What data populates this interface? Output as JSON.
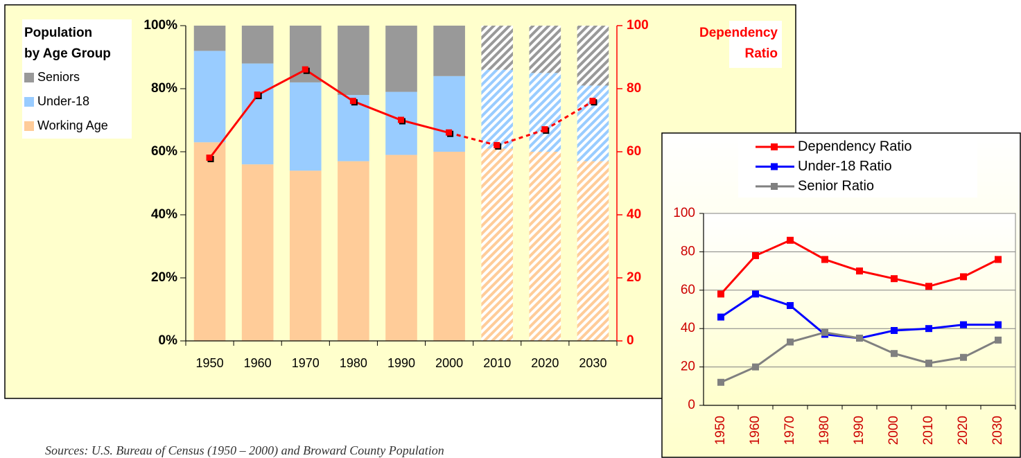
{
  "chart_data": [
    {
      "type": "bar",
      "stacked": true,
      "legend_title": [
        "Population",
        "by Age Group"
      ],
      "y2_title": [
        "Dependency",
        "Ratio"
      ],
      "categories": [
        "1950",
        "1960",
        "1970",
        "1980",
        "1990",
        "2000",
        "2010",
        "2020",
        "2030"
      ],
      "hatched": [
        false,
        false,
        false,
        false,
        false,
        false,
        true,
        true,
        true
      ],
      "series": [
        {
          "name": "Working Age",
          "color": "#ffcc99",
          "values": [
            63,
            56,
            54,
            57,
            59,
            60,
            61,
            60,
            57
          ]
        },
        {
          "name": "Under-18",
          "color": "#99ccff",
          "values": [
            29,
            32,
            28,
            21,
            20,
            24,
            25,
            25,
            24
          ]
        },
        {
          "name": "Seniors",
          "color": "#999999",
          "values": [
            8,
            12,
            18,
            22,
            21,
            16,
            14,
            15,
            19
          ]
        },
        {
          "type": "line",
          "axis": "y2",
          "color": "#ff0000",
          "values": [
            58,
            78,
            86,
            76,
            70,
            66,
            62,
            67,
            76
          ]
        }
      ],
      "ylim": [
        0,
        100
      ],
      "yticks": [
        {
          "value": 0,
          "label": "0%"
        },
        {
          "value": 20,
          "label": "20%"
        },
        {
          "value": 40,
          "label": "40%"
        },
        {
          "value": 60,
          "label": "60%"
        },
        {
          "value": 80,
          "label": "80%"
        },
        {
          "value": 100,
          "label": "100%"
        }
      ],
      "y2lim": [
        0,
        100
      ],
      "y2ticks": [
        0,
        20,
        40,
        60,
        80,
        100
      ],
      "legend": "upper left"
    },
    {
      "type": "line",
      "categories": [
        "1950",
        "1960",
        "1970",
        "1980",
        "1990",
        "2000",
        "2010",
        "2020",
        "2030"
      ],
      "series": [
        {
          "name": "Dependency Ratio",
          "color": "#ff0000",
          "values": [
            58,
            78,
            86,
            76,
            70,
            66,
            62,
            67,
            76
          ]
        },
        {
          "name": "Under-18 Ratio",
          "color": "#0000ff",
          "values": [
            46,
            58,
            52,
            37,
            35,
            39,
            40,
            42,
            42
          ]
        },
        {
          "name": "Senior Ratio",
          "color": "#808080",
          "values": [
            12,
            20,
            33,
            38,
            35,
            27,
            22,
            25,
            34
          ]
        }
      ],
      "ylim": [
        0,
        100
      ],
      "yticks": [
        0,
        20,
        40,
        60,
        80,
        100
      ],
      "grid": true,
      "legend": "top"
    }
  ],
  "source": "Sources: U.S. Bureau of Census (1950 – 2000) and Broward County Population"
}
